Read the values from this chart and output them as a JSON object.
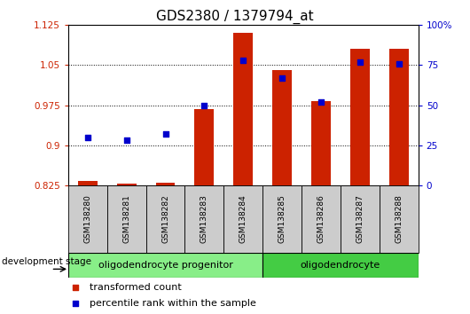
{
  "title": "GDS2380 / 1379794_at",
  "samples": [
    "GSM138280",
    "GSM138281",
    "GSM138282",
    "GSM138283",
    "GSM138284",
    "GSM138285",
    "GSM138286",
    "GSM138287",
    "GSM138288"
  ],
  "transformed_count": [
    0.833,
    0.828,
    0.829,
    0.968,
    1.11,
    1.04,
    0.983,
    1.08,
    1.08
  ],
  "percentile_rank": [
    30,
    28,
    32,
    50,
    78,
    67,
    52,
    77,
    76
  ],
  "bar_color": "#cc2200",
  "scatter_color": "#0000cc",
  "ylim_left": [
    0.825,
    1.125
  ],
  "ylim_right": [
    0,
    100
  ],
  "yticks_left": [
    0.825,
    0.9,
    0.975,
    1.05,
    1.125
  ],
  "ytick_labels_left": [
    "0.825",
    "0.9",
    "0.975",
    "1.05",
    "1.125"
  ],
  "yticks_right": [
    0,
    25,
    50,
    75,
    100
  ],
  "ytick_labels_right": [
    "0",
    "25",
    "50",
    "75",
    "100%"
  ],
  "groups": [
    {
      "label": "oligodendrocyte progenitor",
      "start": 0,
      "end": 4,
      "color": "#88ee88"
    },
    {
      "label": "oligodendrocyte",
      "start": 5,
      "end": 8,
      "color": "#44cc44"
    }
  ],
  "group_label_prefix": "development stage",
  "legend_items": [
    {
      "label": "transformed count",
      "color": "#cc2200"
    },
    {
      "label": "percentile rank within the sample",
      "color": "#0000cc"
    }
  ],
  "background_color": "#ffffff",
  "plot_bg_color": "#ffffff",
  "sample_tick_bg": "#cccccc",
  "title_fontsize": 11
}
